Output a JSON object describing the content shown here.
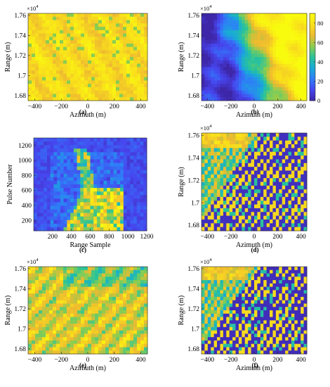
{
  "figure": {
    "panel_captions": [
      "(a)",
      "(b)",
      "(c)",
      "(d)",
      "(e)",
      "(f)"
    ]
  },
  "colors": {
    "parula_stops": [
      "#3e26a8",
      "#4745ee",
      "#2f7df8",
      "#19a9d8",
      "#28c39b",
      "#8ccd4f",
      "#eeba30",
      "#f9e01b",
      "#f9fb0e"
    ],
    "axis": "#262626"
  },
  "chart_data": [
    {
      "id": "a",
      "type": "heatmap",
      "xlabel": "Azimuth (m)",
      "ylabel": "Range (m)",
      "xlim": [
        -450,
        450
      ],
      "ylim": [
        16750,
        17620
      ],
      "xticks": [
        -400,
        -200,
        0,
        200,
        400
      ],
      "yticks": [
        16800,
        17000,
        17200,
        17400,
        17600
      ],
      "yticklabels": [
        "1.68",
        "1.7",
        "1.72",
        "1.74",
        "1.76"
      ],
      "yexponent_label": "×10",
      "yexponent": "4",
      "colormap": "parula",
      "dominant_level": 0.88,
      "description_levels": {
        "texture": "yellow-orange with diagonal banding"
      }
    },
    {
      "id": "b",
      "type": "heatmap",
      "xlabel": "Azimuth (m)",
      "ylabel": "Range (m)",
      "xlim": [
        -450,
        450
      ],
      "ylim": [
        16750,
        17620
      ],
      "xticks": [
        -400,
        -200,
        0,
        200,
        400
      ],
      "yticks": [
        16800,
        17000,
        17200,
        17400,
        17600
      ],
      "yticklabels": [
        "1.68",
        "1.7",
        "1.72",
        "1.74",
        "1.76"
      ],
      "yexponent_label": "×10",
      "yexponent": "4",
      "colormap": "parula",
      "colorbar": {
        "min": 0,
        "max": 90,
        "ticks": [
          0,
          20,
          40,
          60,
          80
        ]
      }
    },
    {
      "id": "c",
      "type": "heatmap",
      "xlabel": "Range Sample",
      "ylabel": "Pulse Number",
      "xlim": [
        0,
        1200
      ],
      "ylim": [
        60,
        1300
      ],
      "xticks": [
        200,
        400,
        600,
        800,
        1000,
        1200
      ],
      "yticks": [
        200,
        400,
        600,
        800,
        1000,
        1200
      ],
      "colormap": "parula"
    },
    {
      "id": "d",
      "type": "heatmap",
      "xlabel": "Azimuth (m)",
      "ylabel": "Range (m)",
      "xlim": [
        -450,
        450
      ],
      "ylim": [
        16750,
        17620
      ],
      "xticks": [
        -400,
        -200,
        0,
        200,
        400
      ],
      "yticks": [
        16800,
        17000,
        17200,
        17400,
        17600
      ],
      "yticklabels": [
        "1.68",
        "1.7",
        "1.72",
        "1.74",
        "1.76"
      ],
      "yexponent_label": "×10",
      "yexponent": "4",
      "colormap": "parula"
    },
    {
      "id": "e",
      "type": "heatmap",
      "xlabel": "Azimuth (m)",
      "ylabel": "Range (m)",
      "xlim": [
        -450,
        450
      ],
      "ylim": [
        16750,
        17620
      ],
      "xticks": [
        -400,
        -200,
        0,
        200,
        400
      ],
      "yticks": [
        16800,
        17000,
        17200,
        17400,
        17600
      ],
      "yticklabels": [
        "1.68",
        "1.7",
        "1.72",
        "1.74",
        "1.76"
      ],
      "yexponent_label": "×10",
      "yexponent": "4",
      "colormap": "parula"
    },
    {
      "id": "f",
      "type": "heatmap",
      "xlabel": "Azimuth (m)",
      "ylabel": "Range (m)",
      "xlim": [
        -450,
        450
      ],
      "ylim": [
        16750,
        17620
      ],
      "xticks": [
        -400,
        -200,
        0,
        200,
        400
      ],
      "yticks": [
        16800,
        17000,
        17200,
        17400,
        17600
      ],
      "yticklabels": [
        "1.68",
        "1.7",
        "1.72",
        "1.74",
        "1.76"
      ],
      "yexponent_label": "×10",
      "yexponent": "4",
      "colormap": "parula"
    }
  ]
}
